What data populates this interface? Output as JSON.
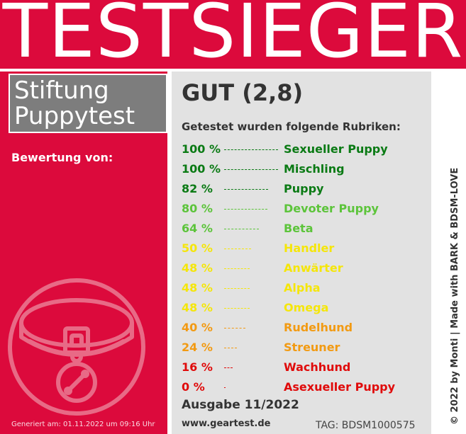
{
  "banner": {
    "title": "TESTSIEGER"
  },
  "brand": {
    "line1": "Stiftung",
    "line2": "Puppytest"
  },
  "rated_by": "Bewertung von:",
  "generated": "Generiert am: 01.11.2022 um 09:16 Uhr",
  "grade": "GUT (2,8)",
  "categories_heading": "Getestet wurden folgende Rubriken:",
  "categories": [
    {
      "percent": "100 %",
      "value": 100,
      "name": "Sexueller Puppy",
      "color": "#0a7a14"
    },
    {
      "percent": "100 %",
      "value": 100,
      "name": "Mischling",
      "color": "#0a7a14"
    },
    {
      "percent": "82 %",
      "value": 82,
      "name": "Puppy",
      "color": "#0a7a14"
    },
    {
      "percent": "80 %",
      "value": 80,
      "name": "Devoter Puppy",
      "color": "#5cc43a"
    },
    {
      "percent": "64 %",
      "value": 64,
      "name": "Beta",
      "color": "#5cc43a"
    },
    {
      "percent": "50 %",
      "value": 50,
      "name": "Handler",
      "color": "#f5e60a"
    },
    {
      "percent": "48 %",
      "value": 48,
      "name": "Anwärter",
      "color": "#f5e60a"
    },
    {
      "percent": "48 %",
      "value": 48,
      "name": "Alpha",
      "color": "#f5e60a"
    },
    {
      "percent": "48 %",
      "value": 48,
      "name": "Omega",
      "color": "#f5e60a"
    },
    {
      "percent": "40 %",
      "value": 40,
      "name": "Rudelhund",
      "color": "#f29a12"
    },
    {
      "percent": "24 %",
      "value": 24,
      "name": "Streuner",
      "color": "#f29a12"
    },
    {
      "percent": "16 %",
      "value": 16,
      "name": "Wachhund",
      "color": "#e00a0a"
    },
    {
      "percent": "0 %",
      "value": 0,
      "name": "Asexueller Puppy",
      "color": "#e00a0a"
    }
  ],
  "edition": "Ausgabe 11/2022",
  "website": "www.geartest.de",
  "tag": "TAG: BDSM1000575",
  "credit": "© 2022 by Monti | Made with BARK & BDSM-LOVE",
  "colors": {
    "banner": "#dc0a3c",
    "panel": "#e2e2e2",
    "brand_box": "#7d7d7d"
  },
  "icons": {
    "collar": "dog-collar-icon"
  }
}
